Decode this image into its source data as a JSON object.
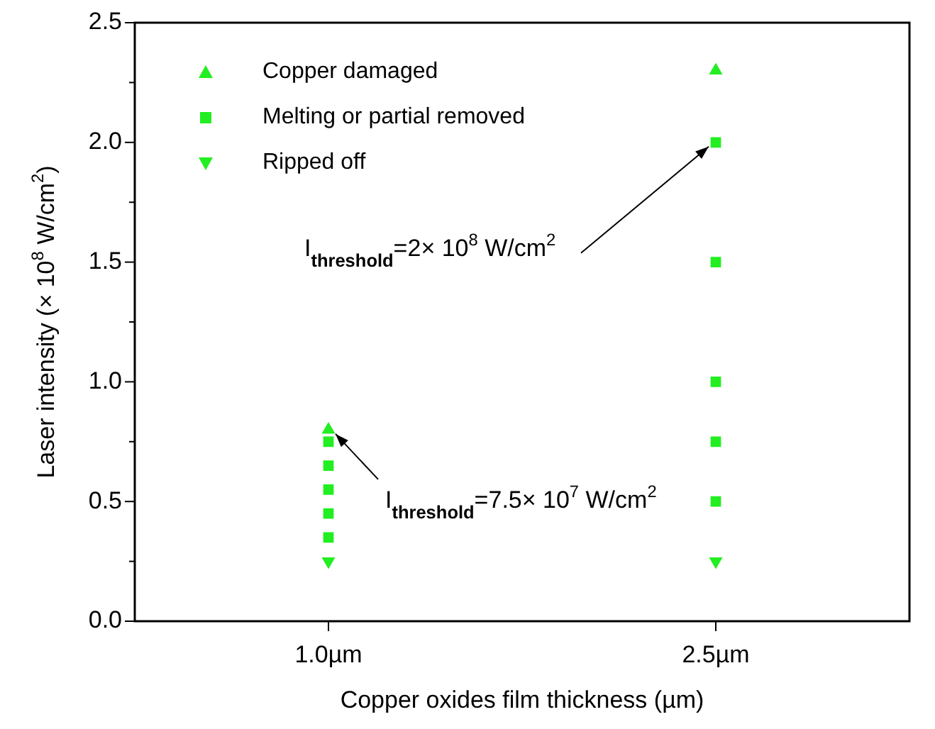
{
  "chart_data": {
    "type": "scatter",
    "xlabel": "Copper oxides film thickness (µm)",
    "ylabel": "Laser intensity (× 10$^{8}$ W/cm$^{2}$)",
    "categories": [
      "1.0µm",
      "2.5µm"
    ],
    "series": [
      {
        "name": "Copper damaged",
        "color": "#22ee22",
        "marker": "triangle",
        "x": [
          "1.0µm",
          "2.5µm"
        ],
        "values": [
          0.8,
          2.3
        ]
      },
      {
        "name": "Melting or partial removed",
        "color": "#22ee22",
        "marker": "square",
        "x": [
          "1.0µm",
          "1.0µm",
          "1.0µm",
          "1.0µm",
          "1.0µm",
          "2.5µm",
          "2.5µm",
          "2.5µm",
          "2.5µm",
          "2.5µm"
        ],
        "values": [
          0.75,
          0.65,
          0.55,
          0.45,
          0.35,
          2.0,
          1.5,
          1.0,
          0.75,
          0.5
        ]
      },
      {
        "name": "Ripped off",
        "color": "#22ee22",
        "marker": "triangle-down",
        "x": [
          "1.0µm",
          "2.5µm"
        ],
        "values": [
          0.25,
          0.25
        ]
      }
    ],
    "ylim": [
      0,
      2.5
    ],
    "yticks": [
      {
        "value": 0,
        "label": "0.0"
      },
      {
        "value": 0.25,
        "label": null
      },
      {
        "value": 0.5,
        "label": "0.5"
      },
      {
        "value": 0.75,
        "label": null
      },
      {
        "value": 1,
        "label": "1.0"
      },
      {
        "value": 1.25,
        "label": null
      },
      {
        "value": 1.5,
        "label": "1.5"
      },
      {
        "value": 1.75,
        "label": null
      },
      {
        "value": 2,
        "label": "2.0"
      },
      {
        "value": 2.25,
        "label": null
      },
      {
        "value": 2.5,
        "label": "2.5"
      }
    ],
    "annotations": [
      {
        "text": "I$_{threshold}$=2× 10$^{8}$ W/cm$^{2}$",
        "x": "2.5µm",
        "y": 2.0
      },
      {
        "text": "I$_{threshold}$=7.5× 10$^{7}$ W/cm$^{2}$",
        "x": "1.0µm",
        "y": 0.8
      }
    ],
    "legend": "top left",
    "grid": false
  }
}
